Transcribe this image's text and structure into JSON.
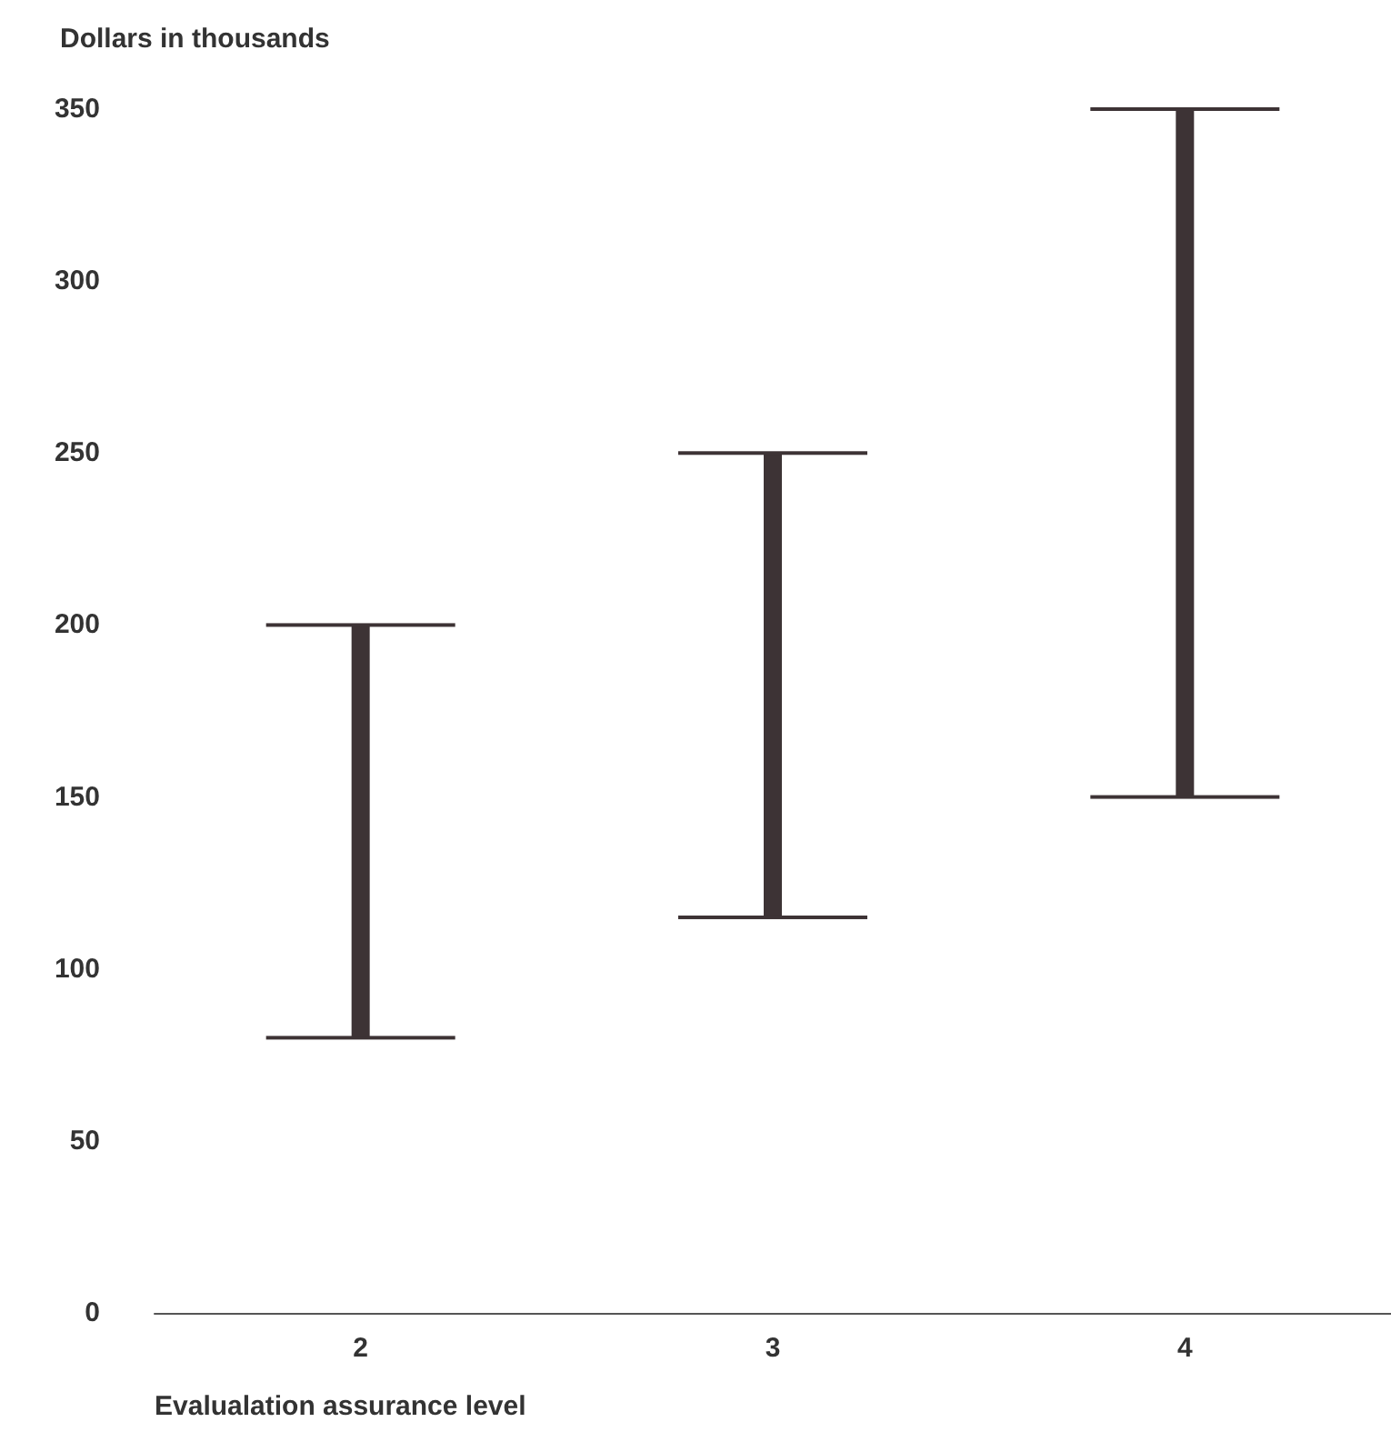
{
  "chart_data": {
    "type": "bar",
    "ylabel": "Dollars in thousands",
    "xlabel": "Evalualation assurance level",
    "categories": [
      "2",
      "3",
      "4"
    ],
    "base": [
      80,
      115,
      150
    ],
    "values": [
      120,
      135,
      200
    ],
    "color": "#3d3335",
    "ylim": [
      0,
      350
    ],
    "yticks": [
      0,
      50,
      100,
      150,
      200,
      250,
      300,
      350
    ],
    "grid": false
  }
}
